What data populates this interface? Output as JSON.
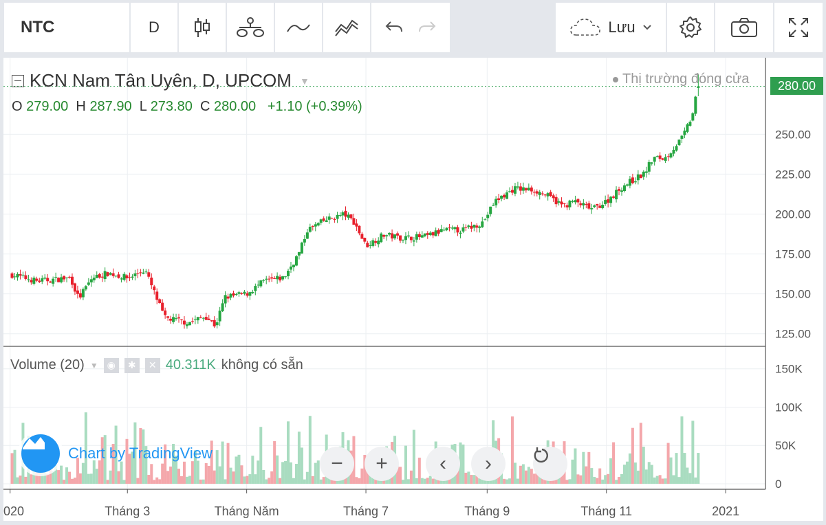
{
  "toolbar": {
    "symbol": "NTC",
    "interval": "D",
    "save_label": "Lưu",
    "icons": [
      "candles-icon",
      "indicators-icon",
      "line-icon",
      "compare-icon",
      "undo-icon",
      "redo-icon",
      "cloud-icon",
      "chevron-down-icon",
      "gear-icon",
      "camera-icon",
      "fullscreen-icon"
    ]
  },
  "legend": {
    "title": "KCN Nam Tân Uyên, D, UPCOM",
    "o_label": "O",
    "o": "279.00",
    "h_label": "H",
    "h": "287.90",
    "l_label": "L",
    "l": "273.80",
    "c_label": "C",
    "c": "280.00",
    "change": "+1.10 (+0.39%)"
  },
  "status": "Thị trường đóng cửa",
  "price_tag": "280.00",
  "volume_legend": {
    "name": "Volume (20)",
    "value": "40.311K",
    "na": "không có sẵn"
  },
  "watermark": "Chart by TradingView",
  "nav": {
    "zoom_out": "−",
    "zoom_in": "+",
    "prev": "‹",
    "next": "›"
  },
  "colors": {
    "up": "#26a641",
    "down": "#e8202c",
    "vol_up": "#a9dcc0",
    "vol_down": "#f4a7ab",
    "accent": "#2196f3"
  },
  "chart_data": {
    "type": "candlestick",
    "price_axis": {
      "ticks": [
        125,
        150,
        175,
        200,
        225,
        250
      ],
      "tick_labels": [
        "125.00",
        "150.00",
        "175.00",
        "200.00",
        "225.00",
        "250.00"
      ],
      "range": [
        118,
        285
      ]
    },
    "volume_axis": {
      "ticks": [
        0,
        50000,
        100000,
        150000
      ],
      "tick_labels": [
        "0",
        "50K",
        "100K",
        "150K"
      ],
      "range": [
        0,
        165000
      ]
    },
    "time_axis": {
      "tick_labels": [
        "020",
        "Tháng 3",
        "Tháng Năm",
        "Tháng 7",
        "Tháng 9",
        "Tháng 11",
        "2021"
      ]
    },
    "close_series": [
      {
        "x": "2020-01-02",
        "y": 162
      },
      {
        "x": "2020-01-15",
        "y": 158
      },
      {
        "x": "2020-02-01",
        "y": 160
      },
      {
        "x": "2020-02-05",
        "y": 147
      },
      {
        "x": "2020-02-12",
        "y": 160
      },
      {
        "x": "2020-02-20",
        "y": 163
      },
      {
        "x": "2020-03-01",
        "y": 160
      },
      {
        "x": "2020-03-10",
        "y": 165
      },
      {
        "x": "2020-03-15",
        "y": 150
      },
      {
        "x": "2020-03-20",
        "y": 135
      },
      {
        "x": "2020-04-01",
        "y": 132
      },
      {
        "x": "2020-04-10",
        "y": 136
      },
      {
        "x": "2020-04-15",
        "y": 130
      },
      {
        "x": "2020-04-20",
        "y": 148
      },
      {
        "x": "2020-05-01",
        "y": 150
      },
      {
        "x": "2020-05-10",
        "y": 158
      },
      {
        "x": "2020-05-20",
        "y": 160
      },
      {
        "x": "2020-05-25",
        "y": 170
      },
      {
        "x": "2020-05-28",
        "y": 176
      },
      {
        "x": "2020-06-01",
        "y": 190
      },
      {
        "x": "2020-06-10",
        "y": 196
      },
      {
        "x": "2020-06-20",
        "y": 200
      },
      {
        "x": "2020-06-25",
        "y": 195
      },
      {
        "x": "2020-07-01",
        "y": 180
      },
      {
        "x": "2020-07-10",
        "y": 187
      },
      {
        "x": "2020-07-20",
        "y": 185
      },
      {
        "x": "2020-08-01",
        "y": 186
      },
      {
        "x": "2020-08-10",
        "y": 190
      },
      {
        "x": "2020-08-20",
        "y": 190
      },
      {
        "x": "2020-08-30",
        "y": 195
      },
      {
        "x": "2020-09-05",
        "y": 208
      },
      {
        "x": "2020-09-15",
        "y": 216
      },
      {
        "x": "2020-09-25",
        "y": 215
      },
      {
        "x": "2020-10-01",
        "y": 212
      },
      {
        "x": "2020-10-10",
        "y": 205
      },
      {
        "x": "2020-10-15",
        "y": 208
      },
      {
        "x": "2020-10-25",
        "y": 203
      },
      {
        "x": "2020-11-01",
        "y": 208
      },
      {
        "x": "2020-11-10",
        "y": 218
      },
      {
        "x": "2020-11-20",
        "y": 225
      },
      {
        "x": "2020-11-25",
        "y": 235
      },
      {
        "x": "2020-12-01",
        "y": 235
      },
      {
        "x": "2020-12-10",
        "y": 248
      },
      {
        "x": "2020-12-15",
        "y": 262
      },
      {
        "x": "2020-12-18",
        "y": 280
      }
    ],
    "last_bar": {
      "open": 279.0,
      "high": 287.9,
      "low": 273.8,
      "close": 280.0,
      "volume": 40311
    }
  }
}
